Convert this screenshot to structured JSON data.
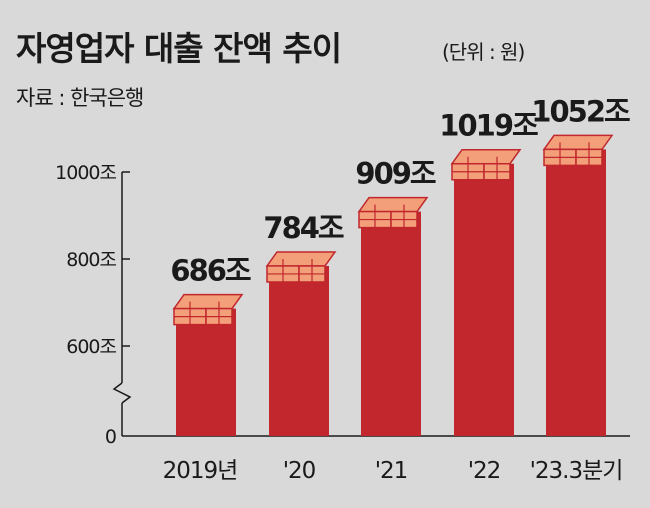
{
  "header": {
    "title": "자영업자 대출 잔액 추이",
    "unit": "(단위 : 원)",
    "source": "자료 : 한국은행"
  },
  "colors": {
    "background": "#d9d9d9",
    "bar": "#c1272d",
    "bar_shadow": "#9e1f24",
    "stack_fill": "#f3a07a",
    "stack_stroke": "#c1272d",
    "text": "#1a1a1a"
  },
  "chart_data": {
    "type": "bar",
    "categories": [
      "2019년",
      "'20",
      "'21",
      "'22",
      "'23.3분기"
    ],
    "values": [
      686,
      784,
      909,
      1019,
      1052
    ],
    "value_labels": [
      "686조",
      "784조",
      "909조",
      "1019조",
      "1052조"
    ],
    "y_ticks": [
      0,
      600,
      800,
      1000
    ],
    "y_tick_labels": [
      "0",
      "600조",
      "800조",
      "1000조"
    ],
    "ylim": [
      0,
      1000
    ],
    "axis_break": true,
    "grid": false,
    "title": "자영업자 대출 잔액 추이",
    "xlabel": "",
    "ylabel": ""
  }
}
